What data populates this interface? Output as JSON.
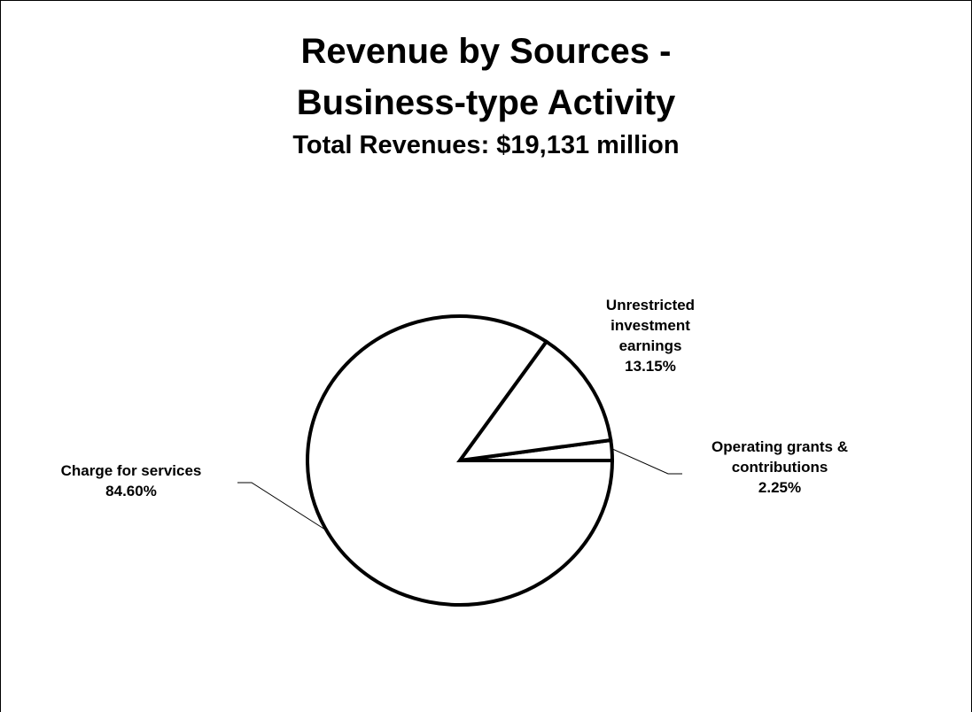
{
  "chart_data": {
    "type": "pie",
    "title": "Revenue by Sources -",
    "title_line2": "Business-type Activity",
    "subtitle": "Total Revenues: $19,131 million",
    "slices": [
      {
        "label_lines": [
          "Charge for services"
        ],
        "value": 84.6,
        "value_label": "84.60%"
      },
      {
        "label_lines": [
          "Unrestricted",
          "investment",
          "earnings"
        ],
        "value": 13.15,
        "value_label": "13.15%"
      },
      {
        "label_lines": [
          "Operating grants &",
          "contributions"
        ],
        "value": 2.25,
        "value_label": "2.25%"
      }
    ],
    "colors": {
      "fill": "#ffffff",
      "stroke": "#000000"
    }
  }
}
